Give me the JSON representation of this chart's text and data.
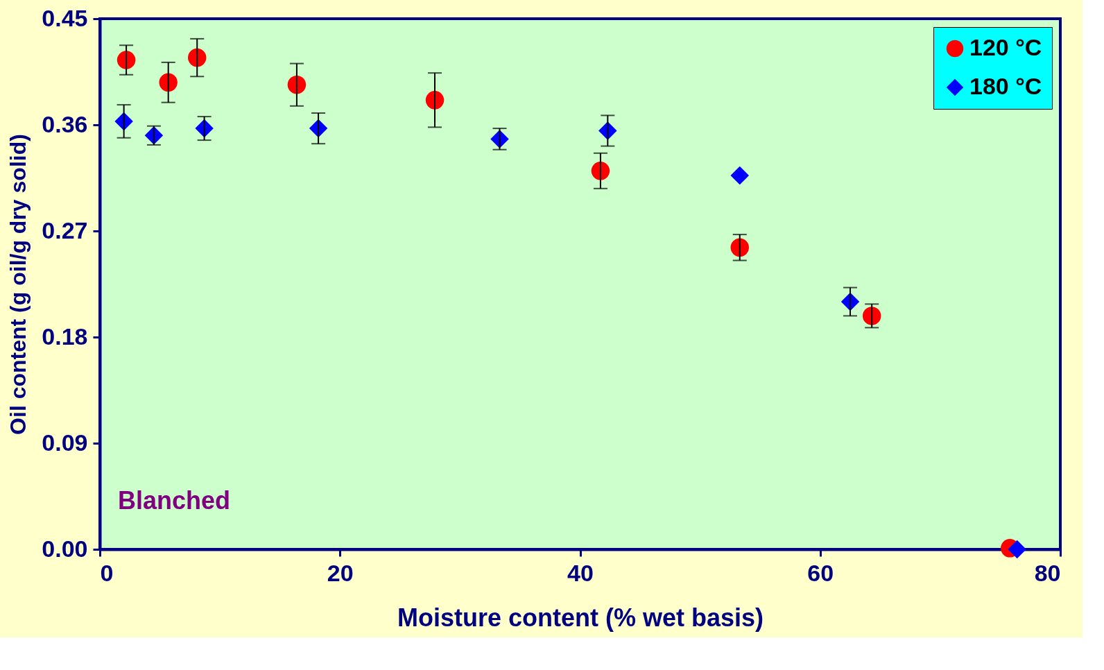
{
  "chart_data": {
    "type": "scatter",
    "xlabel": "Moisture content (% wet basis)",
    "ylabel": "Oil content (g oil/g dry solid)",
    "xlim": [
      0,
      80
    ],
    "xticks": [
      0,
      20,
      40,
      60,
      80
    ],
    "ylim": [
      0,
      0.45
    ],
    "yticks": [
      {
        "value": 0,
        "label": "0.00"
      },
      {
        "value": 0.09,
        "label": "0.09"
      },
      {
        "value": 0.18,
        "label": "0.18"
      },
      {
        "value": 0.27,
        "label": "0.27"
      },
      {
        "value": 0.36,
        "label": "0.36"
      },
      {
        "value": 0.45,
        "label": "0.45"
      }
    ],
    "grid": false,
    "legend": "top right",
    "annotations": [
      "Blanched"
    ],
    "series": [
      {
        "name": "120 °C",
        "color": "#ff0000",
        "marker": "circle",
        "x": [
          2.2,
          5.7,
          8.1,
          16.4,
          27.9,
          41.7,
          53.3,
          64.3,
          75.8
        ],
        "values": [
          0.415,
          0.396,
          0.417,
          0.394,
          0.381,
          0.321,
          0.256,
          0.198,
          0.001
        ],
        "errors": [
          0.0125,
          0.017,
          0.016,
          0.018,
          0.023,
          0.015,
          0.011,
          0.01,
          null
        ]
      },
      {
        "name": "180 °C",
        "color": "#0000ff",
        "marker": "diamond",
        "x": [
          2.0,
          4.5,
          8.7,
          18.2,
          33.3,
          42.3,
          53.3,
          62.5,
          76.4
        ],
        "values": [
          0.363,
          0.351,
          0.357,
          0.357,
          0.348,
          0.355,
          0.317,
          0.21,
          0.0
        ],
        "errors": [
          0.014,
          0.008,
          0.01,
          0.013,
          0.009,
          0.013,
          null,
          0.012,
          null
        ]
      }
    ]
  }
}
